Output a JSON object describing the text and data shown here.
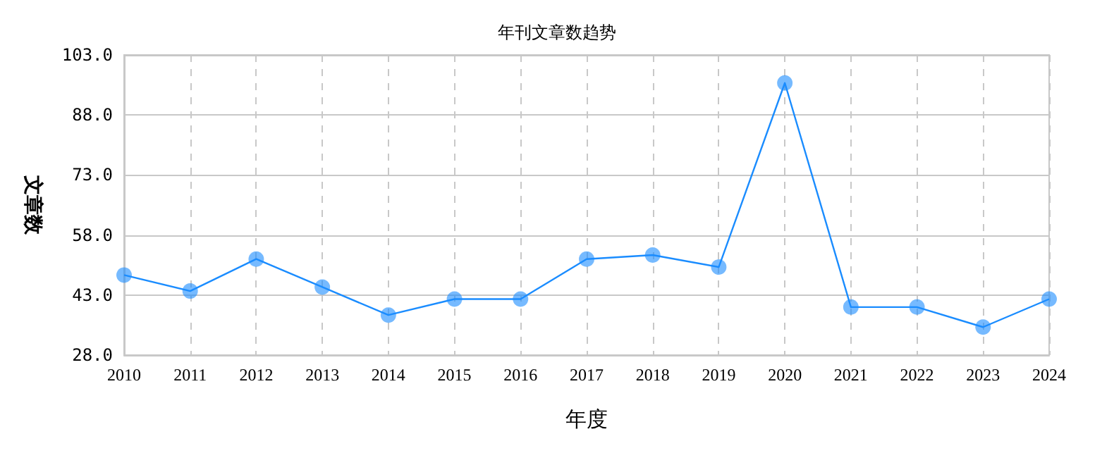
{
  "chart_data": {
    "type": "line",
    "title": "年刊文章数趋势",
    "xlabel": "年度",
    "ylabel": "文章数",
    "categories": [
      "2010",
      "2011",
      "2012",
      "2013",
      "2014",
      "2015",
      "2016",
      "2017",
      "2018",
      "2019",
      "2020",
      "2021",
      "2022",
      "2023",
      "2024"
    ],
    "series": [
      {
        "color": "#1a8cff",
        "values": [
          48,
          44,
          52,
          45,
          38,
          42,
          42,
          52,
          53,
          50,
          96,
          40,
          40,
          35,
          42
        ]
      }
    ],
    "ylim": [
      28,
      103
    ],
    "yticks": [
      {
        "value": 28,
        "label": "28.0"
      },
      {
        "value": 43,
        "label": "43.0"
      },
      {
        "value": 58,
        "label": "58.0"
      },
      {
        "value": 73,
        "label": "73.0"
      },
      {
        "value": 88,
        "label": "88.0"
      },
      {
        "value": 103,
        "label": "103.0"
      }
    ],
    "grid": true,
    "marker": "circle",
    "line_style": "solid"
  }
}
